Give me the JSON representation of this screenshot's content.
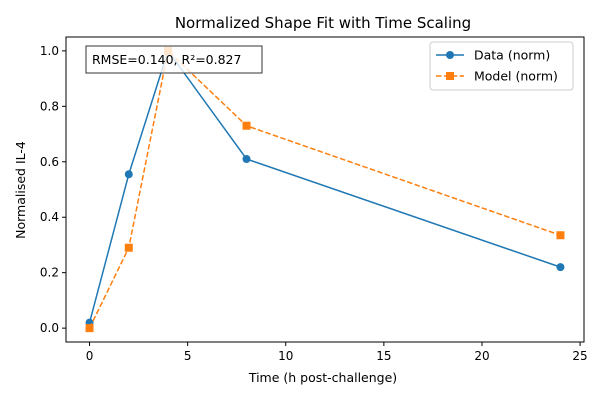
{
  "chart_data": {
    "type": "line",
    "title": "Normalized Shape Fit with Time Scaling",
    "xlabel": "Time (h post-challenge)",
    "ylabel": "Normalised IL-4",
    "xlim": [
      -1.2,
      25.2
    ],
    "ylim": [
      -0.05,
      1.05
    ],
    "xticks": [
      0,
      5,
      10,
      15,
      20,
      25
    ],
    "yticks": [
      0.0,
      0.2,
      0.4,
      0.6,
      0.8,
      1.0
    ],
    "xtick_labels": [
      "0",
      "5",
      "10",
      "15",
      "20",
      "25"
    ],
    "ytick_labels": [
      "0.0",
      "0.2",
      "0.4",
      "0.6",
      "0.8",
      "1.0"
    ],
    "grid": false,
    "legend_position": "upper right",
    "annotation": "RMSE=0.140, R²=0.827",
    "series": [
      {
        "name": "Data (norm)",
        "color": "#1f77b4",
        "marker": "circle",
        "linestyle": "solid",
        "x": [
          0,
          2,
          4,
          8,
          24
        ],
        "y": [
          0.02,
          0.555,
          1.0,
          0.61,
          0.22
        ]
      },
      {
        "name": "Model (norm)",
        "color": "#ff7f0e",
        "marker": "square",
        "linestyle": "dashed",
        "x": [
          0,
          2,
          4,
          8,
          24
        ],
        "y": [
          0.0,
          0.29,
          1.0,
          0.73,
          0.335
        ]
      }
    ]
  }
}
